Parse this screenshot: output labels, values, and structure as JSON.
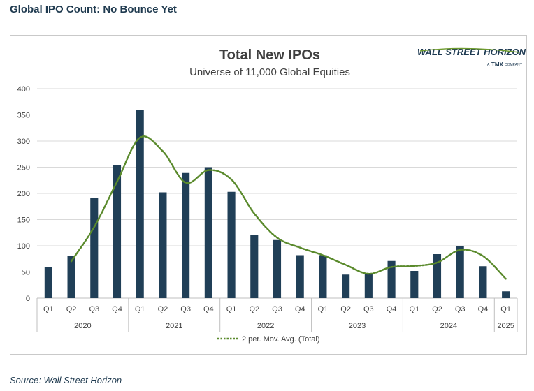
{
  "headline": "Global IPO Count: No Bounce Yet",
  "source": "Source: Wall Street Horizon",
  "logo": {
    "main": "WALL STREET HORIZON",
    "prefix": "A",
    "brand": "TMX",
    "suffix": "COMPANY"
  },
  "colors": {
    "bar": "#203f57",
    "avg": "#5a8a2c",
    "grid": "#d9d9d9",
    "text": "#404040",
    "logo": "#1e3a52"
  },
  "chart_data": {
    "type": "bar",
    "title": "Total New IPOs",
    "subtitle": "Universe of 11,000 Global Equities",
    "categories": [
      "Q1",
      "Q2",
      "Q3",
      "Q4",
      "Q1",
      "Q2",
      "Q3",
      "Q4",
      "Q1",
      "Q2",
      "Q3",
      "Q4",
      "Q1",
      "Q2",
      "Q3",
      "Q4",
      "Q1",
      "Q2",
      "Q3",
      "Q4",
      "Q1"
    ],
    "years": [
      {
        "label": "2020",
        "span": 4
      },
      {
        "label": "2021",
        "span": 4
      },
      {
        "label": "2022",
        "span": 4
      },
      {
        "label": "2023",
        "span": 4
      },
      {
        "label": "2024",
        "span": 4
      },
      {
        "label": "2025",
        "span": 1
      }
    ],
    "series": [
      {
        "type": "bar",
        "values": [
          60,
          81,
          191,
          254,
          359,
          202,
          239,
          250,
          203,
          120,
          111,
          82,
          82,
          45,
          48,
          71,
          52,
          84,
          100,
          61,
          13
        ]
      },
      {
        "type": "line",
        "name": "2 per. Mov. Avg. (Total)",
        "values": [
          null,
          70.5,
          136,
          222.5,
          306.5,
          280.5,
          220.5,
          244.5,
          226.5,
          161.5,
          115.5,
          96.5,
          82,
          63.5,
          46.5,
          59.5,
          61.5,
          68,
          92,
          80.5,
          37
        ]
      }
    ],
    "ylim": [
      0,
      400
    ],
    "yticks": [
      0,
      50,
      100,
      150,
      200,
      250,
      300,
      350,
      400
    ],
    "grid": true,
    "legend": "bottom-center"
  }
}
